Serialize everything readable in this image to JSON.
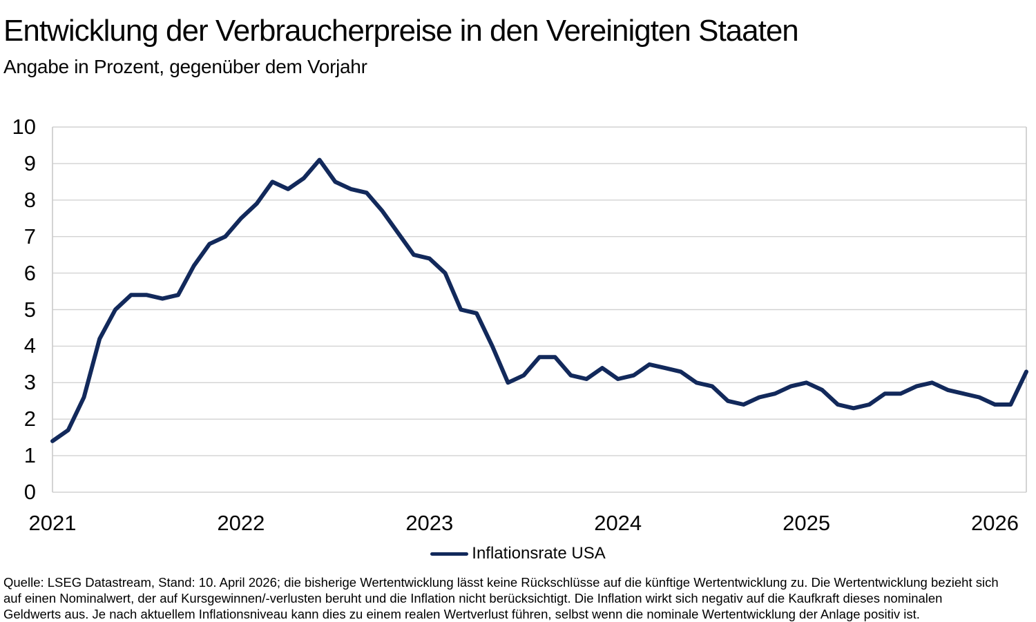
{
  "header": {
    "title": "Entwicklung der Verbraucherpreise in den Vereinigten Staaten",
    "subtitle": "Angabe in Prozent, gegenüber dem Vorjahr"
  },
  "chart_data": {
    "type": "line",
    "title": "Entwicklung der Verbraucherpreise in den Vereinigten Staaten",
    "subtitle": "Angabe in Prozent, gegenüber dem Vorjahr",
    "x_monthly_from": "2021-01",
    "x_monthly_to": "2026-03",
    "series": [
      {
        "name": "Inflationsrate USA",
        "color": "#12295b",
        "values": [
          1.4,
          1.7,
          2.6,
          4.2,
          5.0,
          5.4,
          5.4,
          5.3,
          5.4,
          6.2,
          6.8,
          7.0,
          7.5,
          7.9,
          8.5,
          8.3,
          8.6,
          9.1,
          8.5,
          8.3,
          8.2,
          7.7,
          7.1,
          6.5,
          6.4,
          6.0,
          5.0,
          4.9,
          4.0,
          3.0,
          3.2,
          3.7,
          3.7,
          3.2,
          3.1,
          3.4,
          3.1,
          3.2,
          3.5,
          3.4,
          3.3,
          3.0,
          2.9,
          2.5,
          2.4,
          2.6,
          2.7,
          2.9,
          3.0,
          2.8,
          2.4,
          2.3,
          2.4,
          2.7,
          2.7,
          2.9,
          3.0,
          2.8,
          2.7,
          2.6,
          2.4,
          2.4,
          3.3
        ]
      }
    ],
    "x_tick_labels": [
      "2021",
      "2022",
      "2023",
      "2024",
      "2025",
      "2026"
    ],
    "y_tick_labels": [
      "10",
      "9",
      "8",
      "7",
      "6",
      "5",
      "4",
      "3",
      "2",
      "1",
      "0"
    ],
    "ylim": [
      0,
      10
    ],
    "grid": "horizontal-only",
    "legend_position": "bottom-center"
  },
  "legend": {
    "label": "Inflationsrate USA",
    "color": "#12295b"
  },
  "footer": {
    "lines": [
      "Quelle: LSEG Datastream, Stand: 10. April 2026; die bisherige Wertentwicklung lässt keine Rückschlüsse auf die künftige Wertentwicklung zu. Die Wertentwicklung bezieht sich",
      "auf einen Nominalwert, der auf Kursgewinnen/-verlusten beruht und die Inflation nicht berücksichtigt. Die Inflation wirkt sich negativ auf die Kaufkraft dieses nominalen",
      "Geldwerts aus. Je nach aktuellem Inflationsniveau kann dies zu einem realen Wertverlust führen, selbst wenn die nominale Wertentwicklung der Anlage positiv ist."
    ]
  },
  "colors": {
    "line": "#12295b",
    "grid": "#d2d2d2",
    "frame": "#c9c9c9",
    "text": "#050505"
  }
}
